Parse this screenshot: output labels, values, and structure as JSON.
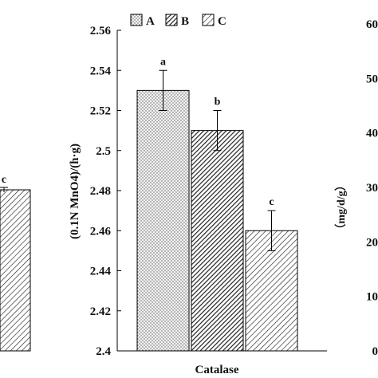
{
  "chart_data": [
    {
      "type": "bar",
      "xlabel": "Catalase",
      "ylabel": "(0.1N MnO4)/(h·g)",
      "ylim": [
        2.4,
        2.56
      ],
      "yticks": [
        "2.4",
        "2.42",
        "2.44",
        "2.46",
        "2.48",
        "2.5",
        "2.52",
        "2.54",
        "2.56"
      ],
      "grid": false,
      "legend_position": "top",
      "categories": [
        "Catalase"
      ],
      "series": [
        {
          "name": "A",
          "values": [
            2.53
          ],
          "error": [
            0.01
          ],
          "significance": "a",
          "pattern": "dots",
          "color": "#f2f2f2"
        },
        {
          "name": "B",
          "values": [
            2.51
          ],
          "error": [
            0.01
          ],
          "significance": "b",
          "pattern": "dense-diagonal",
          "color": "#ffffff"
        },
        {
          "name": "C",
          "values": [
            2.46
          ],
          "error": [
            0.01
          ],
          "significance": "c",
          "pattern": "diagonal",
          "color": "#ffffff"
        }
      ]
    },
    {
      "type": "bar",
      "partial": "left-edge",
      "visible_bar_value_label": "c",
      "visible_bar_pattern": "diagonal"
    },
    {
      "type": "bar",
      "partial": "right-edge",
      "ylabel": "（mg/d/g）",
      "yticks": [
        "0",
        "10",
        "20",
        "30",
        "40",
        "50",
        "60"
      ]
    }
  ]
}
